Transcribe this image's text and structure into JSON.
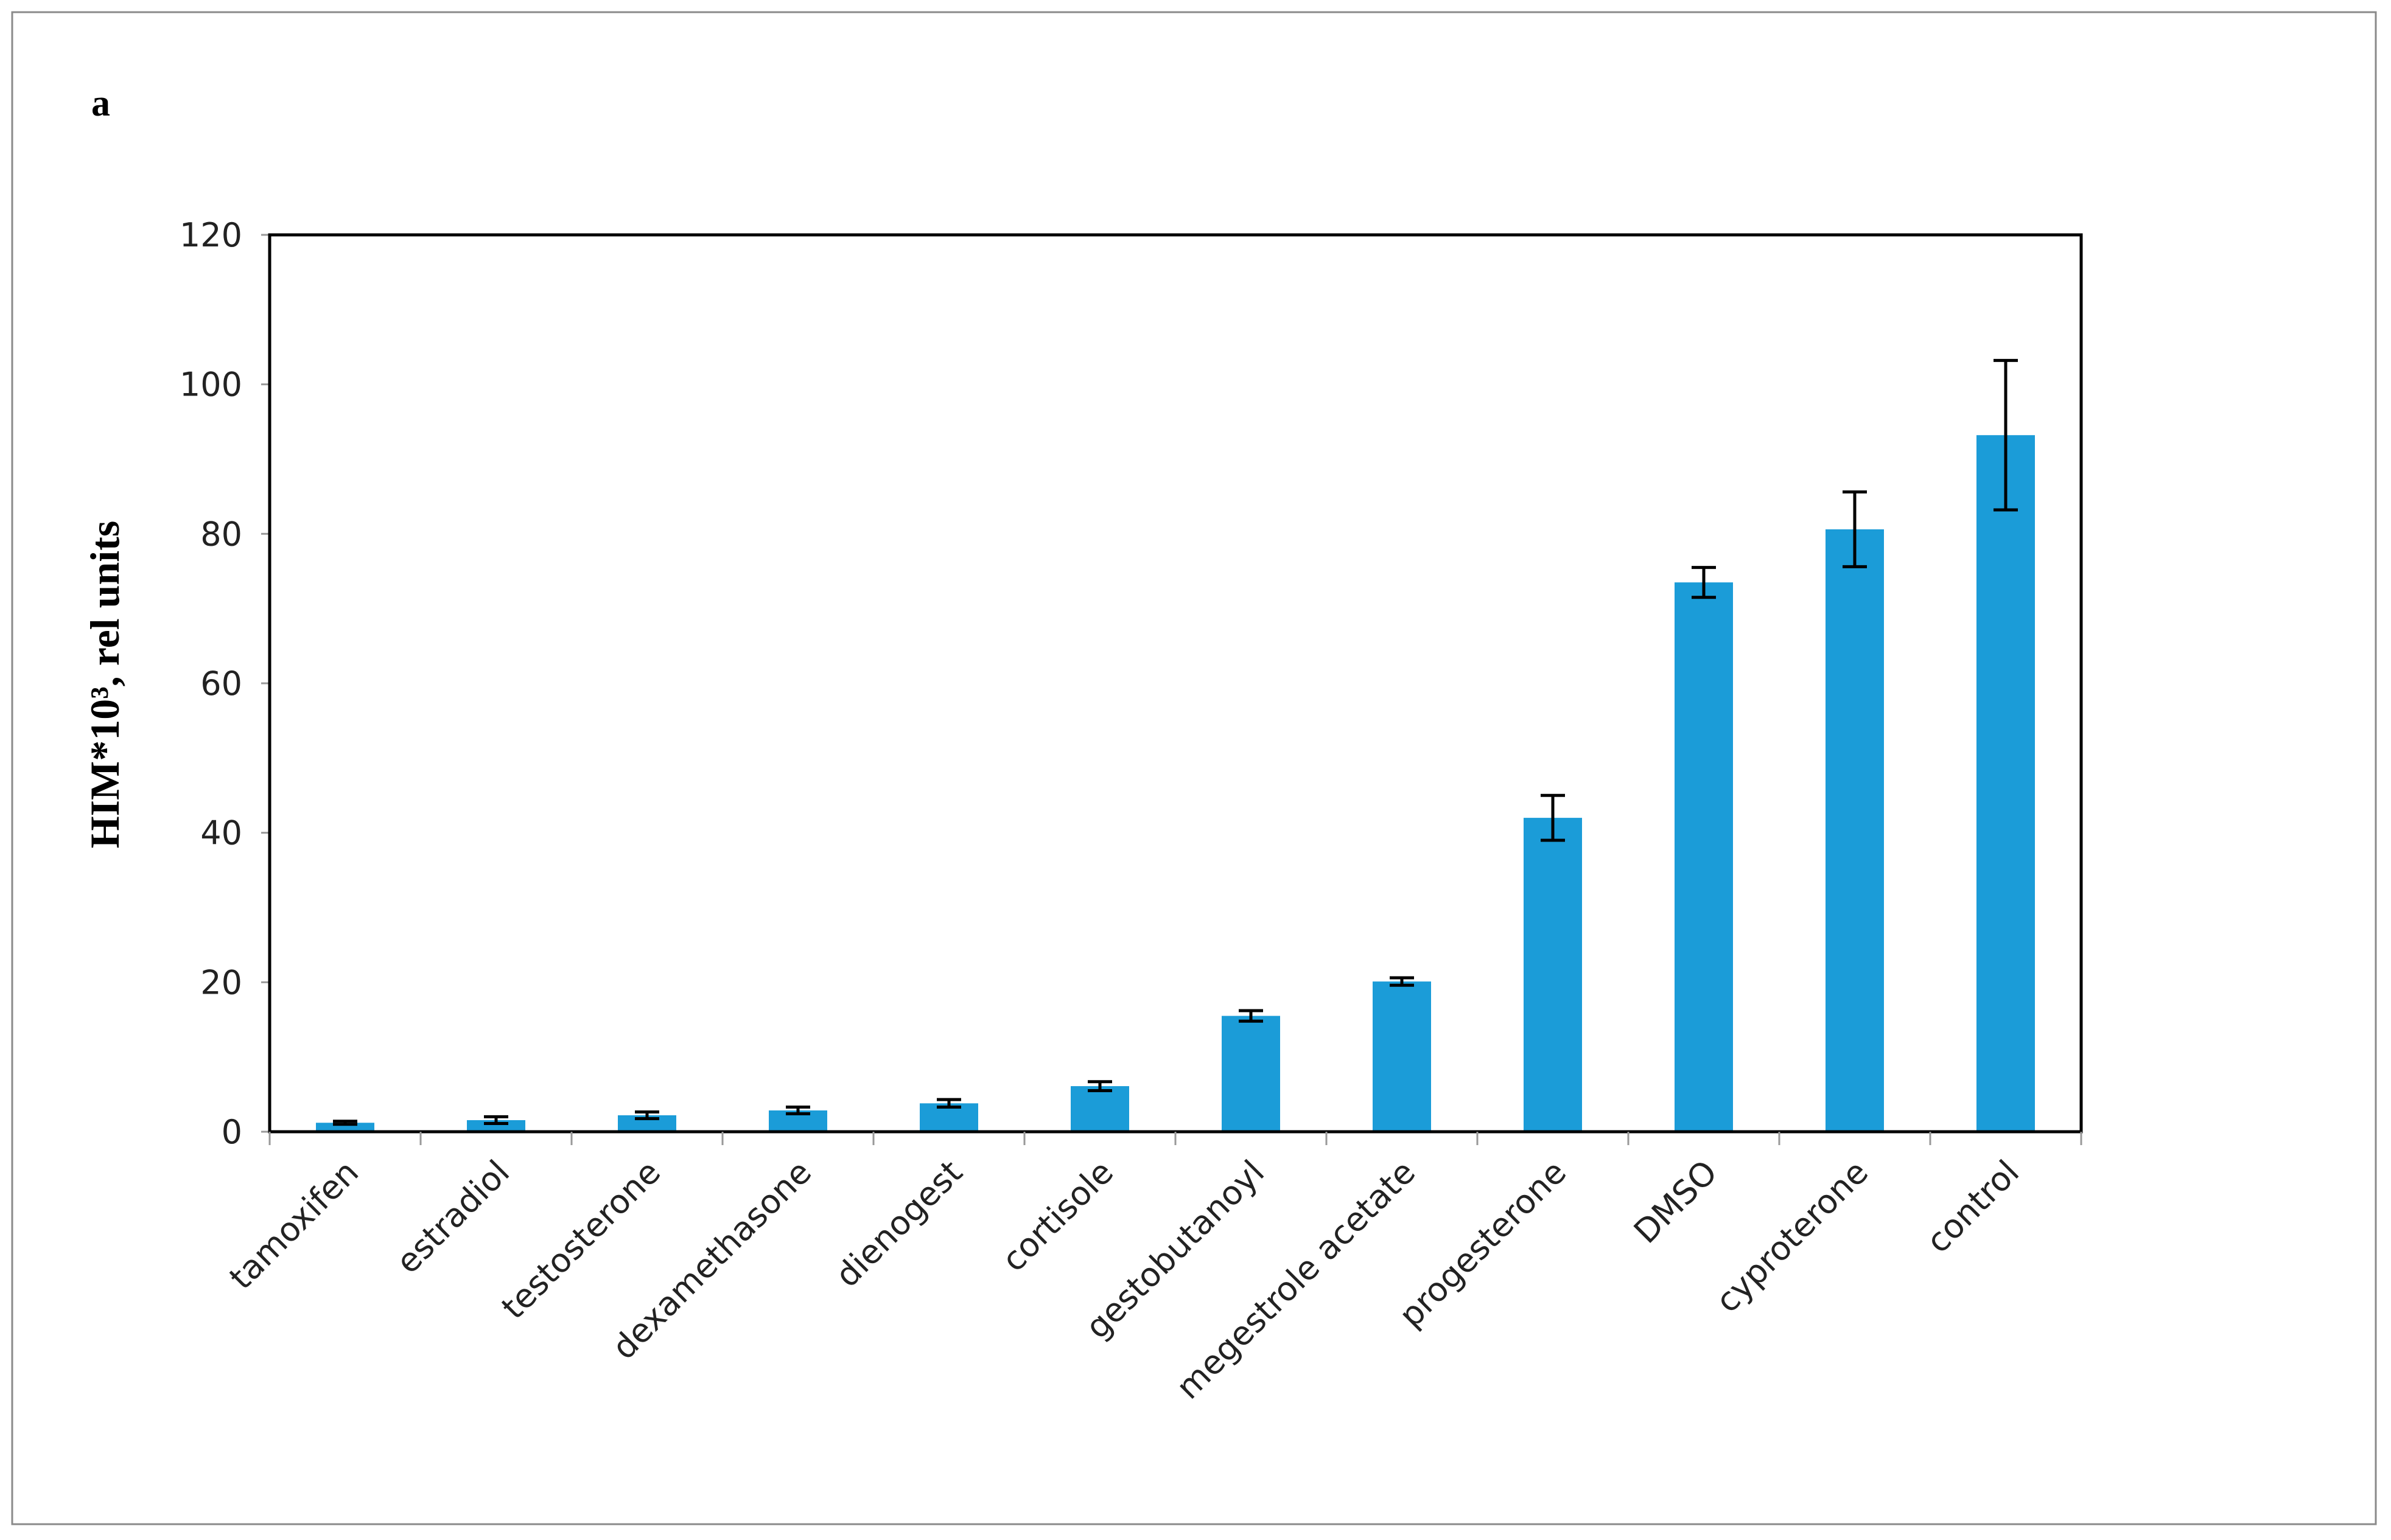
{
  "panel_label": "a",
  "chart_data": {
    "type": "bar",
    "title": "",
    "xlabel": "",
    "ylabel": "HIM*10³, rel units",
    "ylim": [
      0,
      120
    ],
    "yticks": [
      0,
      20,
      40,
      60,
      80,
      100,
      120
    ],
    "grid": false,
    "bar_color": "#1b9cd8",
    "categories": [
      "tamoxifen",
      "estradiol",
      "testosterone",
      "dexamethasone",
      "dienogest",
      "cortisole",
      "gestobutanoyl",
      "megestrole acetate",
      "progesterone",
      "DMSO",
      "cyproterone",
      "control"
    ],
    "values": [
      1.2,
      1.55,
      2.2,
      2.85,
      3.8,
      6.1,
      15.5,
      20.1,
      42.0,
      73.5,
      80.6,
      93.2
    ],
    "errors": [
      0.2,
      0.45,
      0.45,
      0.45,
      0.5,
      0.6,
      0.7,
      0.5,
      3.0,
      2.0,
      5.0,
      10.0
    ]
  }
}
